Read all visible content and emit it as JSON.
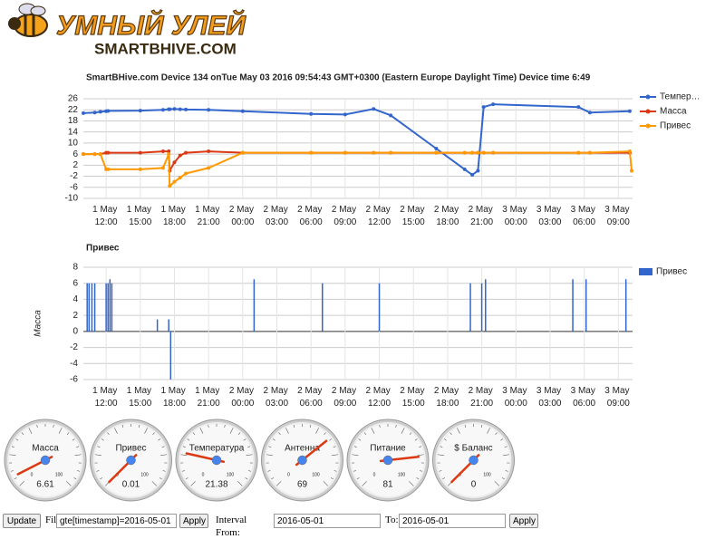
{
  "header": {
    "title": "УМНЫЙ УЛЕЙ",
    "subtitle": "SMARTBHIVE.COM"
  },
  "chart_data": [
    {
      "type": "line",
      "title": "SmartBHive.com Device 134 onTue May 03 2016 09:54:43 GMT+0300 (Eastern Europe Daylight Time) Device time 6:49",
      "x": [
        "1 May 10:00",
        "1 May 11:00",
        "1 May 11:30",
        "1 May 12:00",
        "1 May 12:10",
        "1 May 15:00",
        "1 May 17:00",
        "1 May 17:30",
        "1 May 17:35",
        "1 May 18:00",
        "1 May 18:30",
        "1 May 19:00",
        "1 May 21:00",
        "2 May 00:00",
        "2 May 06:00",
        "2 May 09:00",
        "2 May 11:30",
        "2 May 13:00",
        "2 May 17:00",
        "2 May 19:30",
        "2 May 20:10",
        "2 May 20:40",
        "2 May 21:10",
        "2 May 22:00",
        "3 May 05:30",
        "3 May 06:30",
        "3 May 10:00",
        "3 May 10:10"
      ],
      "series": [
        {
          "name": "Темпер…",
          "color": "#3366cc",
          "values": [
            20.8,
            21,
            21.3,
            21.5,
            21.6,
            21.7,
            22,
            22.2,
            22.2,
            22.3,
            22.2,
            22.1,
            22,
            21.5,
            20.5,
            20.3,
            22.3,
            20,
            8,
            0.5,
            -1.5,
            0,
            23,
            24,
            23,
            21,
            21.5,
            null
          ]
        },
        {
          "name": "Масса",
          "color": "#dc3912",
          "values": [
            6,
            6,
            6,
            6.5,
            6.5,
            6.5,
            7,
            7,
            0,
            3,
            5.5,
            6.5,
            7,
            6.5,
            6.5,
            6.5,
            6.5,
            6.5,
            6.5,
            6.5,
            6.5,
            6.5,
            6.5,
            6.5,
            6.5,
            6.5,
            6.5,
            null
          ]
        },
        {
          "name": "Привес",
          "color": "#ff9900",
          "values": [
            6,
            6,
            6,
            0.5,
            0.5,
            0.5,
            1,
            6,
            -5.5,
            -4,
            -2.5,
            -1,
            1,
            6.5,
            6.5,
            6.5,
            6.5,
            6.5,
            6.5,
            6.5,
            6.5,
            6.5,
            6.5,
            6.5,
            6.5,
            6.5,
            7,
            0
          ]
        }
      ],
      "xlim": [
        "1 May 10:00",
        "3 May 10:15"
      ],
      "xticks": [
        "1 May 12:00",
        "1 May 15:00",
        "1 May 18:00",
        "1 May 21:00",
        "2 May 00:00",
        "2 May 03:00",
        "2 May 06:00",
        "2 May 09:00",
        "2 May 12:00",
        "2 May 15:00",
        "2 May 18:00",
        "2 May 21:00",
        "3 May 00:00",
        "3 May 03:00",
        "3 May 06:00",
        "3 May 09:00"
      ],
      "ylim": [
        -10,
        26
      ],
      "yticks": [
        -10,
        -6,
        -2,
        2,
        6,
        10,
        14,
        18,
        22,
        26
      ],
      "grid": true,
      "legend": "right"
    },
    {
      "type": "bar",
      "title": "Привес",
      "ylabel": "Масса",
      "x": [
        "1 May 10:20",
        "1 May 10:30",
        "1 May 10:45",
        "1 May 11:00",
        "1 May 12:00",
        "1 May 12:10",
        "1 May 12:20",
        "1 May 12:30",
        "1 May 16:30",
        "1 May 17:30",
        "1 May 17:40",
        "2 May 01:00",
        "2 May 07:00",
        "2 May 12:00",
        "2 May 20:00",
        "2 May 21:00",
        "2 May 21:20",
        "3 May 05:00",
        "3 May 06:10",
        "3 May 09:40"
      ],
      "series": [
        {
          "name": "Привес",
          "color": "#3366cc",
          "values": [
            6,
            6,
            6,
            6,
            6,
            6,
            6.5,
            6,
            1.5,
            1.5,
            -6,
            6.5,
            6,
            6,
            6,
            6,
            6.5,
            6.5,
            6.5,
            6.5
          ]
        }
      ],
      "xlim": [
        "1 May 10:00",
        "3 May 10:15"
      ],
      "xticks": [
        "1 May 12:00",
        "1 May 15:00",
        "1 May 18:00",
        "1 May 21:00",
        "2 May 00:00",
        "2 May 03:00",
        "2 May 06:00",
        "2 May 09:00",
        "2 May 12:00",
        "2 May 15:00",
        "2 May 18:00",
        "2 May 21:00",
        "3 May 00:00",
        "3 May 03:00",
        "3 May 06:00",
        "3 May 09:00"
      ],
      "ylim": [
        -6,
        8
      ],
      "yticks": [
        -6,
        -4,
        -2,
        0,
        2,
        4,
        6,
        8
      ],
      "grid": true,
      "legend": "right"
    },
    {
      "type": "gauge",
      "categories": [
        "Масса",
        "Привес",
        "Температура",
        "Антенна",
        "Питание",
        "$ Баланс"
      ],
      "values": [
        6.61,
        0.01,
        21.38,
        69,
        81,
        0
      ],
      "ylim": [
        0,
        100
      ]
    }
  ],
  "form": {
    "update": "Update",
    "filter_label": "Filter",
    "filter_value": "gte[timestamp]=2016-05-01",
    "apply": "Apply",
    "from_label": "Interval From:",
    "from_value": "2016-05-01",
    "to_label": "To:",
    "to_value": "2016-05-01",
    "apply2": "Apply"
  }
}
